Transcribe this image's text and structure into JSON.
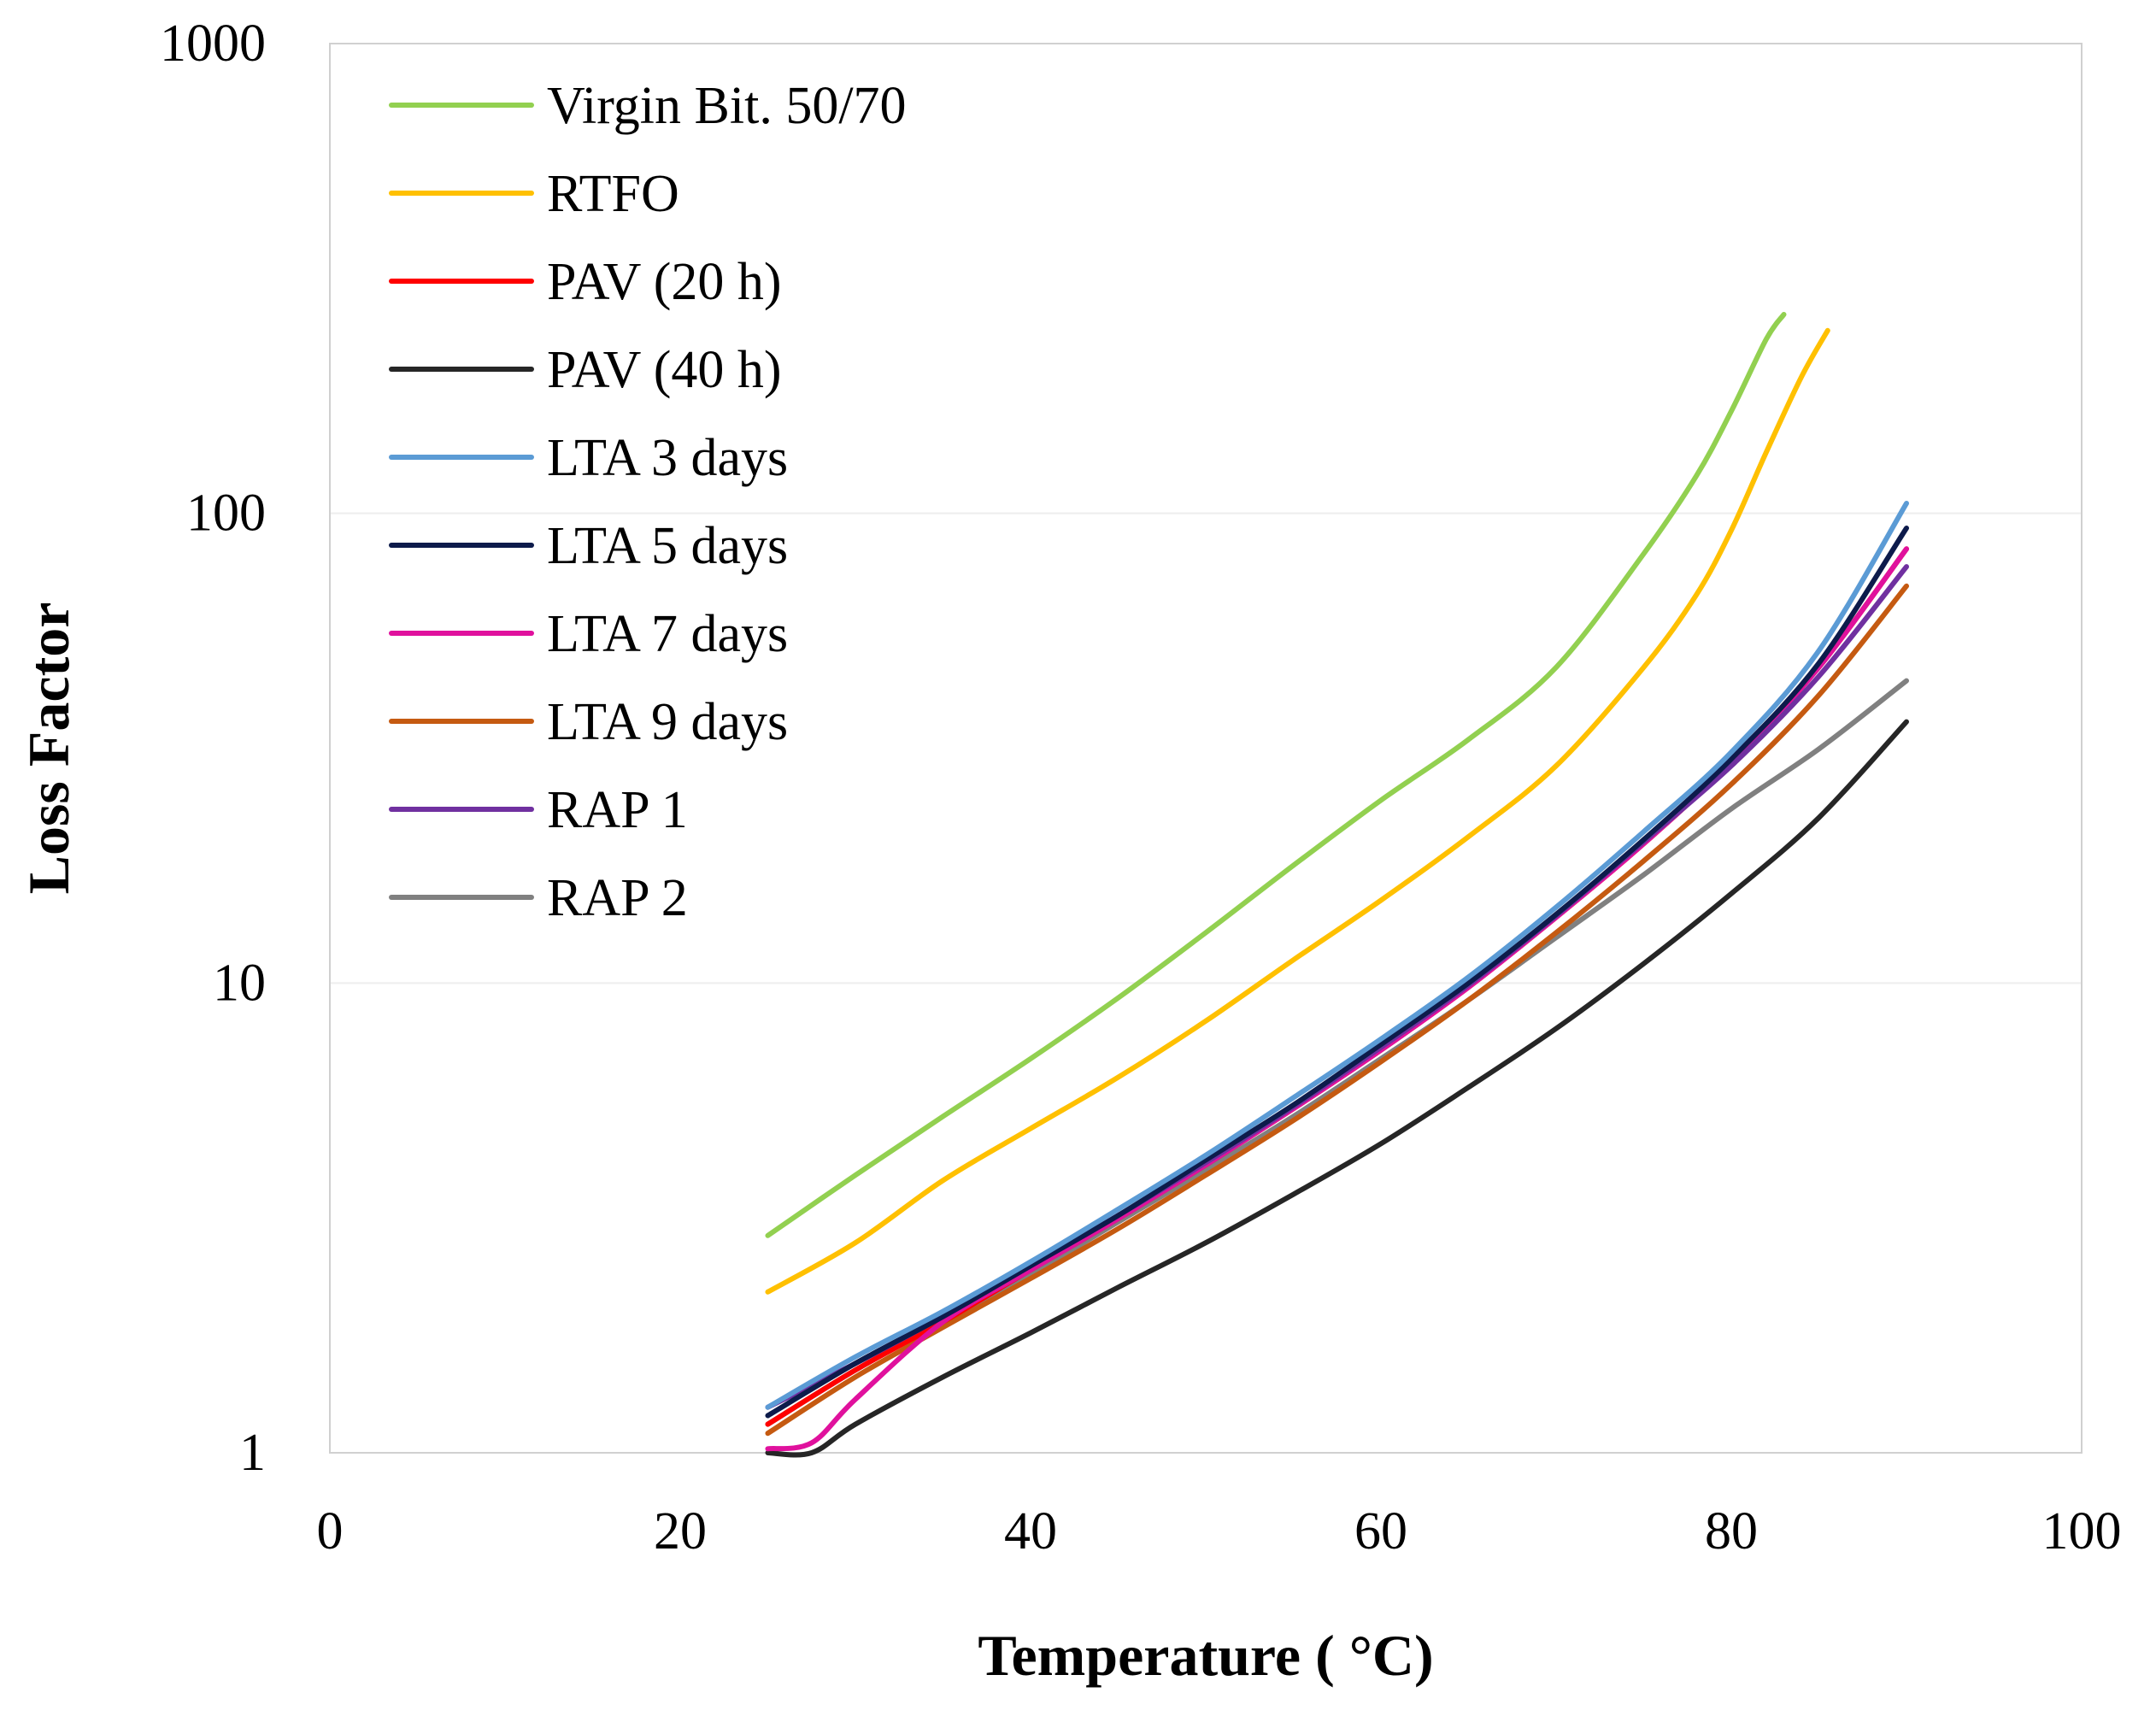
{
  "chart_data": {
    "type": "line",
    "title": "",
    "xlabel": "Temperature ( °C)",
    "ylabel": "Loss Factor",
    "xlim": [
      0,
      100
    ],
    "ylim": [
      1,
      1000
    ],
    "yscale": "log",
    "grid": true,
    "legend_position": "top-left",
    "x_ticks": [
      "0",
      "20",
      "40",
      "60",
      "80",
      "100"
    ],
    "y_ticks": [
      "1",
      "10",
      "100",
      "1000"
    ],
    "series": [
      {
        "name": "Virgin Bit. 50/70",
        "color": "#92D050",
        "x": [
          25,
          30,
          35,
          40,
          45,
          50,
          55,
          60,
          65,
          70,
          75,
          78,
          80,
          82,
          83
        ],
        "y": [
          2.9,
          3.9,
          5.2,
          6.9,
          9.3,
          12.8,
          17.8,
          24.5,
          33,
          47,
          82,
          120,
          165,
          235,
          265
        ]
      },
      {
        "name": "RTFO",
        "color": "#FFC000",
        "x": [
          25,
          30,
          35,
          40,
          45,
          50,
          55,
          60,
          65,
          70,
          75,
          78,
          80,
          82,
          84,
          85.5
        ],
        "y": [
          2.2,
          2.8,
          3.8,
          4.9,
          6.3,
          8.3,
          11.2,
          15,
          20.5,
          29,
          47,
          67,
          92,
          135,
          195,
          245
        ]
      },
      {
        "name": "PAV (20 h)",
        "color": "#FF0000",
        "x": [
          25,
          30,
          35,
          40,
          45,
          50,
          55,
          60,
          65,
          70,
          75,
          80,
          85,
          90
        ],
        "y": [
          1.15,
          1.5,
          1.9,
          2.45,
          3.15,
          4.1,
          5.4,
          7.2,
          9.8,
          13.8,
          19.8,
          29.5,
          47,
          84
        ]
      },
      {
        "name": "PAV (40 h)",
        "color": "#262626",
        "x": [
          25,
          27.5,
          30,
          35,
          40,
          45,
          50,
          55,
          60,
          65,
          70,
          75,
          80,
          85,
          90
        ],
        "y": [
          1.0,
          1.0,
          1.15,
          1.45,
          1.8,
          2.25,
          2.8,
          3.55,
          4.55,
          6.0,
          8.0,
          11.0,
          15.5,
          22.5,
          36
        ]
      },
      {
        "name": "LTA 3 days",
        "color": "#5B9BD5",
        "x": [
          25,
          30,
          35,
          40,
          45,
          50,
          55,
          60,
          65,
          70,
          75,
          80,
          85,
          90
        ],
        "y": [
          1.25,
          1.6,
          2.0,
          2.55,
          3.3,
          4.3,
          5.7,
          7.6,
          10.3,
          14.5,
          21,
          31,
          51,
          105
        ]
      },
      {
        "name": "LTA 5 days",
        "color": "#0D1B4B",
        "x": [
          25,
          30,
          35,
          40,
          45,
          50,
          55,
          60,
          65,
          70,
          75,
          80,
          85,
          90
        ],
        "y": [
          1.2,
          1.55,
          1.95,
          2.5,
          3.2,
          4.2,
          5.5,
          7.4,
          10.0,
          14.0,
          20.2,
          30,
          48,
          93
        ]
      },
      {
        "name": "LTA 7 days",
        "color": "#E0119D",
        "x": [
          25,
          27.5,
          30,
          35,
          40,
          45,
          50,
          55,
          60,
          65,
          70,
          75,
          80,
          85,
          90
        ],
        "y": [
          1.02,
          1.05,
          1.3,
          1.9,
          2.45,
          3.15,
          4.1,
          5.4,
          7.2,
          9.8,
          13.8,
          19.8,
          29.5,
          47,
          84
        ]
      },
      {
        "name": "LTA 9 days",
        "color": "#C55A11",
        "x": [
          25,
          30,
          35,
          40,
          45,
          50,
          55,
          60,
          65,
          70,
          75,
          80,
          85,
          90
        ],
        "y": [
          1.1,
          1.45,
          1.85,
          2.35,
          3.0,
          3.9,
          5.1,
          6.8,
          9.2,
          12.8,
          18.2,
          26.5,
          41,
          70
        ]
      },
      {
        "name": "RAP 1",
        "color": "#7030A0",
        "x": [
          25,
          30,
          35,
          40,
          45,
          50,
          55,
          60,
          65,
          70,
          75,
          80,
          85,
          90
        ],
        "y": [
          1.25,
          1.55,
          1.95,
          2.5,
          3.2,
          4.15,
          5.45,
          7.3,
          9.9,
          13.9,
          20,
          29,
          45,
          77
        ]
      },
      {
        "name": "RAP 2",
        "color": "#808080",
        "x": [
          25,
          30,
          35,
          40,
          45,
          50,
          55,
          60,
          65,
          70,
          75,
          80,
          85,
          90
        ],
        "y": [
          1.15,
          1.5,
          1.9,
          2.4,
          3.1,
          4.0,
          5.2,
          6.9,
          9.2,
          12.5,
          17,
          23.5,
          31.5,
          44
        ]
      }
    ]
  }
}
